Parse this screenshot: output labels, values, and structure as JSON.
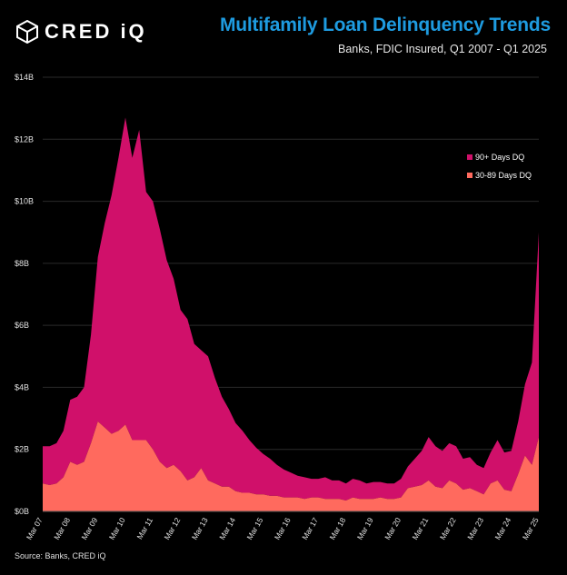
{
  "header": {
    "logo_text": "CRED iQ",
    "title": "Multifamily Loan Delinquency Trends",
    "subtitle": "Banks, FDIC Insured, Q1 2007 - Q1 2025"
  },
  "footer": {
    "source": "Source: Banks, CRED iQ"
  },
  "colors": {
    "background": "#000000",
    "dq90": "#d0106a",
    "dq3089": "#ff6a5e",
    "title": "#1e9be0"
  },
  "chart_data": {
    "type": "area",
    "stacked": true,
    "ylim": [
      0,
      14
    ],
    "yticks": [
      0,
      2,
      4,
      6,
      8,
      10,
      12,
      14
    ],
    "ytick_labels": [
      "$0B",
      "$2B",
      "$4B",
      "$6B",
      "$8B",
      "$10B",
      "$12B",
      "$14B"
    ],
    "xlim": [
      2007,
      2025
    ],
    "xticks": [
      2007,
      2008,
      2009,
      2010,
      2011,
      2012,
      2013,
      2014,
      2015,
      2016,
      2017,
      2018,
      2019,
      2020,
      2021,
      2022,
      2023,
      2024,
      2025
    ],
    "xtick_labels": [
      "Mar 07",
      "Mar 08",
      "Mar 09",
      "Mar 10",
      "Mar 11",
      "Mar 12",
      "Mar 13",
      "Mar 14",
      "Mar 15",
      "Mar 16",
      "Mar 17",
      "Mar 18",
      "Mar 19",
      "Mar 20",
      "Mar 21",
      "Mar 22",
      "Mar 23",
      "Mar 24",
      "Mar 25"
    ],
    "legend_position": "top-right",
    "x": [
      2007,
      2007.25,
      2007.5,
      2007.75,
      2008,
      2008.25,
      2008.5,
      2008.75,
      2009,
      2009.25,
      2009.5,
      2009.75,
      2010,
      2010.25,
      2010.5,
      2010.75,
      2011,
      2011.25,
      2011.5,
      2011.75,
      2012,
      2012.25,
      2012.5,
      2012.75,
      2013,
      2013.25,
      2013.5,
      2013.75,
      2014,
      2014.25,
      2014.5,
      2014.75,
      2015,
      2015.25,
      2015.5,
      2015.75,
      2016,
      2016.25,
      2016.5,
      2016.75,
      2017,
      2017.25,
      2017.5,
      2017.75,
      2018,
      2018.25,
      2018.5,
      2018.75,
      2019,
      2019.25,
      2019.5,
      2019.75,
      2020,
      2020.25,
      2020.5,
      2020.75,
      2021,
      2021.25,
      2021.5,
      2021.75,
      2022,
      2022.25,
      2022.5,
      2022.75,
      2023,
      2023.25,
      2023.5,
      2023.75,
      2024,
      2024.25,
      2024.5,
      2024.75,
      2025
    ],
    "series": [
      {
        "name": "30-89 Days DQ",
        "values": [
          0.9,
          0.85,
          0.9,
          1.1,
          1.6,
          1.5,
          1.6,
          2.2,
          2.9,
          2.7,
          2.5,
          2.6,
          2.8,
          2.3,
          2.3,
          2.3,
          2.0,
          1.6,
          1.4,
          1.5,
          1.3,
          1.0,
          1.1,
          1.4,
          1.0,
          0.9,
          0.8,
          0.8,
          0.65,
          0.6,
          0.6,
          0.55,
          0.55,
          0.5,
          0.5,
          0.45,
          0.45,
          0.45,
          0.4,
          0.45,
          0.45,
          0.4,
          0.4,
          0.4,
          0.35,
          0.45,
          0.4,
          0.4,
          0.4,
          0.45,
          0.4,
          0.4,
          0.45,
          0.75,
          0.8,
          0.85,
          1.0,
          0.8,
          0.75,
          1.0,
          0.9,
          0.7,
          0.75,
          0.65,
          0.55,
          0.9,
          1.0,
          0.7,
          0.65,
          1.2,
          1.8,
          1.5,
          2.4
        ]
      },
      {
        "name": "90+ Days DQ",
        "values": [
          1.2,
          1.25,
          1.3,
          1.5,
          2.0,
          2.2,
          2.4,
          3.5,
          5.3,
          6.6,
          7.7,
          8.8,
          9.9,
          9.1,
          10.0,
          8.0,
          8.0,
          7.5,
          6.7,
          6.0,
          5.2,
          5.2,
          4.3,
          3.8,
          4.0,
          3.4,
          2.9,
          2.5,
          2.2,
          2.0,
          1.7,
          1.5,
          1.3,
          1.2,
          1.0,
          0.9,
          0.8,
          0.7,
          0.7,
          0.6,
          0.6,
          0.7,
          0.6,
          0.6,
          0.55,
          0.6,
          0.6,
          0.5,
          0.55,
          0.5,
          0.5,
          0.5,
          0.6,
          0.7,
          0.9,
          1.1,
          1.4,
          1.3,
          1.2,
          1.2,
          1.2,
          1.0,
          1.0,
          0.85,
          0.85,
          1.0,
          1.3,
          1.2,
          1.3,
          1.7,
          2.3,
          3.3,
          6.6
        ]
      }
    ],
    "legend": [
      "90+ Days DQ",
      "30-89 Days DQ"
    ]
  }
}
